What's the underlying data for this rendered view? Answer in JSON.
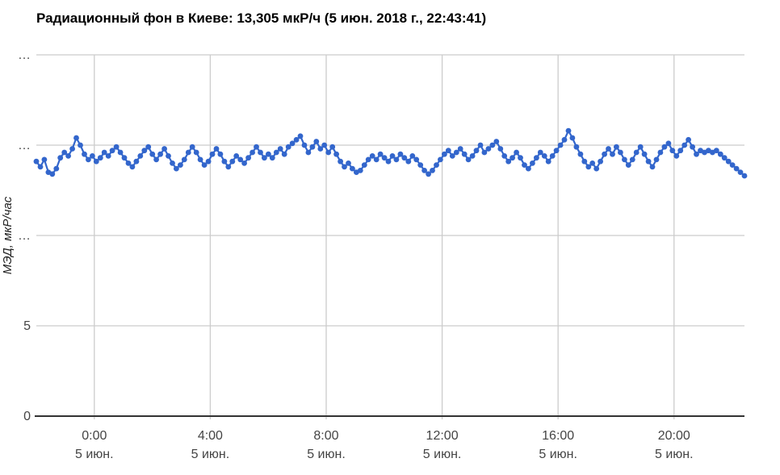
{
  "header": {
    "title": "Радиационный фон в Киеве: 13,305 мкР/ч (5 июн. 2018 г., 22:43:41)",
    "current_value": "13,305 мкР/ч",
    "current_timestamp": "5 июн. 2018 г., 22:43:41"
  },
  "chart_data": {
    "type": "line",
    "title": "Радиационный фон в Киеве: 13,305 мкР/ч (5 июн. 2018 г., 22:43:41)",
    "xlabel": "",
    "ylabel": "МЭД, мкР/час",
    "ylim": [
      0,
      20
    ],
    "x_start_hour": -2.0,
    "x_end_hour": 22.43,
    "grid": true,
    "legend_position": "none",
    "yticks": [
      {
        "value": 0,
        "label": "0"
      },
      {
        "value": 5,
        "label": "5"
      },
      {
        "value": 10,
        "label": "…"
      },
      {
        "value": 15,
        "label": "…"
      },
      {
        "value": 20,
        "label": "…"
      }
    ],
    "xticks": [
      {
        "hour": 0,
        "label": "0:00",
        "sub": "5 июн."
      },
      {
        "hour": 4,
        "label": "4:00",
        "sub": "5 июн."
      },
      {
        "hour": 8,
        "label": "8:00",
        "sub": "5 июн."
      },
      {
        "hour": 12,
        "label": "12:00",
        "sub": "5 июн."
      },
      {
        "hour": 16,
        "label": "16:00",
        "sub": "5 июн."
      },
      {
        "hour": 20,
        "label": "20:00",
        "sub": "5 июн."
      }
    ],
    "colors": {
      "series": "#3366cc",
      "grid": "#cccccc",
      "baseline": "#333333",
      "tick_label": "#444444",
      "axis_title": "#222222",
      "title": "#000000"
    },
    "series": [
      {
        "name": "МЭД, мкР/час",
        "color": "#3366cc",
        "values": [
          14.1,
          13.8,
          14.2,
          13.5,
          13.4,
          13.7,
          14.3,
          14.6,
          14.4,
          14.8,
          15.4,
          15.0,
          14.5,
          14.2,
          14.4,
          14.1,
          14.3,
          14.6,
          14.4,
          14.7,
          14.9,
          14.6,
          14.3,
          14.0,
          13.8,
          14.1,
          14.4,
          14.7,
          14.9,
          14.5,
          14.2,
          14.5,
          14.8,
          14.4,
          14.0,
          13.7,
          13.9,
          14.2,
          14.6,
          14.9,
          14.6,
          14.2,
          13.9,
          14.1,
          14.5,
          14.8,
          14.5,
          14.1,
          13.8,
          14.1,
          14.4,
          14.2,
          14.0,
          14.3,
          14.6,
          14.9,
          14.6,
          14.3,
          14.5,
          14.3,
          14.6,
          14.8,
          14.5,
          14.9,
          15.1,
          15.3,
          15.5,
          15.0,
          14.6,
          14.9,
          15.2,
          14.8,
          15.0,
          14.6,
          14.9,
          14.5,
          14.1,
          13.8,
          14.0,
          13.7,
          13.5,
          13.6,
          13.9,
          14.2,
          14.4,
          14.2,
          14.5,
          14.3,
          14.1,
          14.4,
          14.2,
          14.5,
          14.3,
          14.1,
          14.4,
          14.2,
          13.9,
          13.6,
          13.4,
          13.6,
          13.9,
          14.2,
          14.5,
          14.7,
          14.4,
          14.6,
          14.8,
          14.5,
          14.2,
          14.4,
          14.7,
          15.0,
          14.6,
          14.8,
          15.0,
          15.2,
          14.8,
          14.4,
          14.1,
          14.3,
          14.6,
          14.3,
          13.9,
          13.7,
          14.0,
          14.3,
          14.6,
          14.4,
          14.1,
          14.4,
          14.7,
          15.0,
          15.3,
          15.8,
          15.4,
          14.9,
          14.5,
          14.1,
          13.8,
          14.0,
          13.7,
          14.1,
          14.5,
          14.8,
          14.5,
          14.9,
          14.6,
          14.2,
          13.9,
          14.2,
          14.6,
          14.9,
          14.5,
          14.1,
          13.8,
          14.2,
          14.6,
          14.9,
          15.1,
          14.7,
          14.4,
          14.7,
          15.0,
          15.3,
          14.9,
          14.5,
          14.7,
          14.6,
          14.7,
          14.6,
          14.7,
          14.5,
          14.3,
          14.1,
          13.9,
          13.7,
          13.5,
          13.305
        ]
      }
    ]
  }
}
